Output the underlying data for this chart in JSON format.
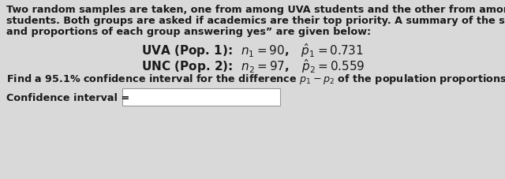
{
  "bg_color": "#d9d9d9",
  "text_color": "#1a1a1a",
  "para_line1": "Two random samples are taken, one from among UVA students and the other from among UNC",
  "para_line2": "students. Both groups are asked if academics are their top priority. A summary of the sample sizes",
  "para_line3": "and proportions of each group answering yes” are given below:",
  "math_line1": "UVA (Pop. 1):  $n_1 = 90$,   $\\hat{p}_1 = 0.731$",
  "math_line2": "UNC (Pop. 2):  $n_2 = 97$,   $\\hat{p}_2 = 0.559$",
  "question": "Find a 95.1% confidence interval for the difference $p_1 - p_2$ of the population proportions.",
  "label": "Confidence interval = ",
  "fontsize_para": 9.2,
  "fontsize_math": 11.0,
  "fontsize_q": 9.2,
  "fontsize_label": 9.2
}
